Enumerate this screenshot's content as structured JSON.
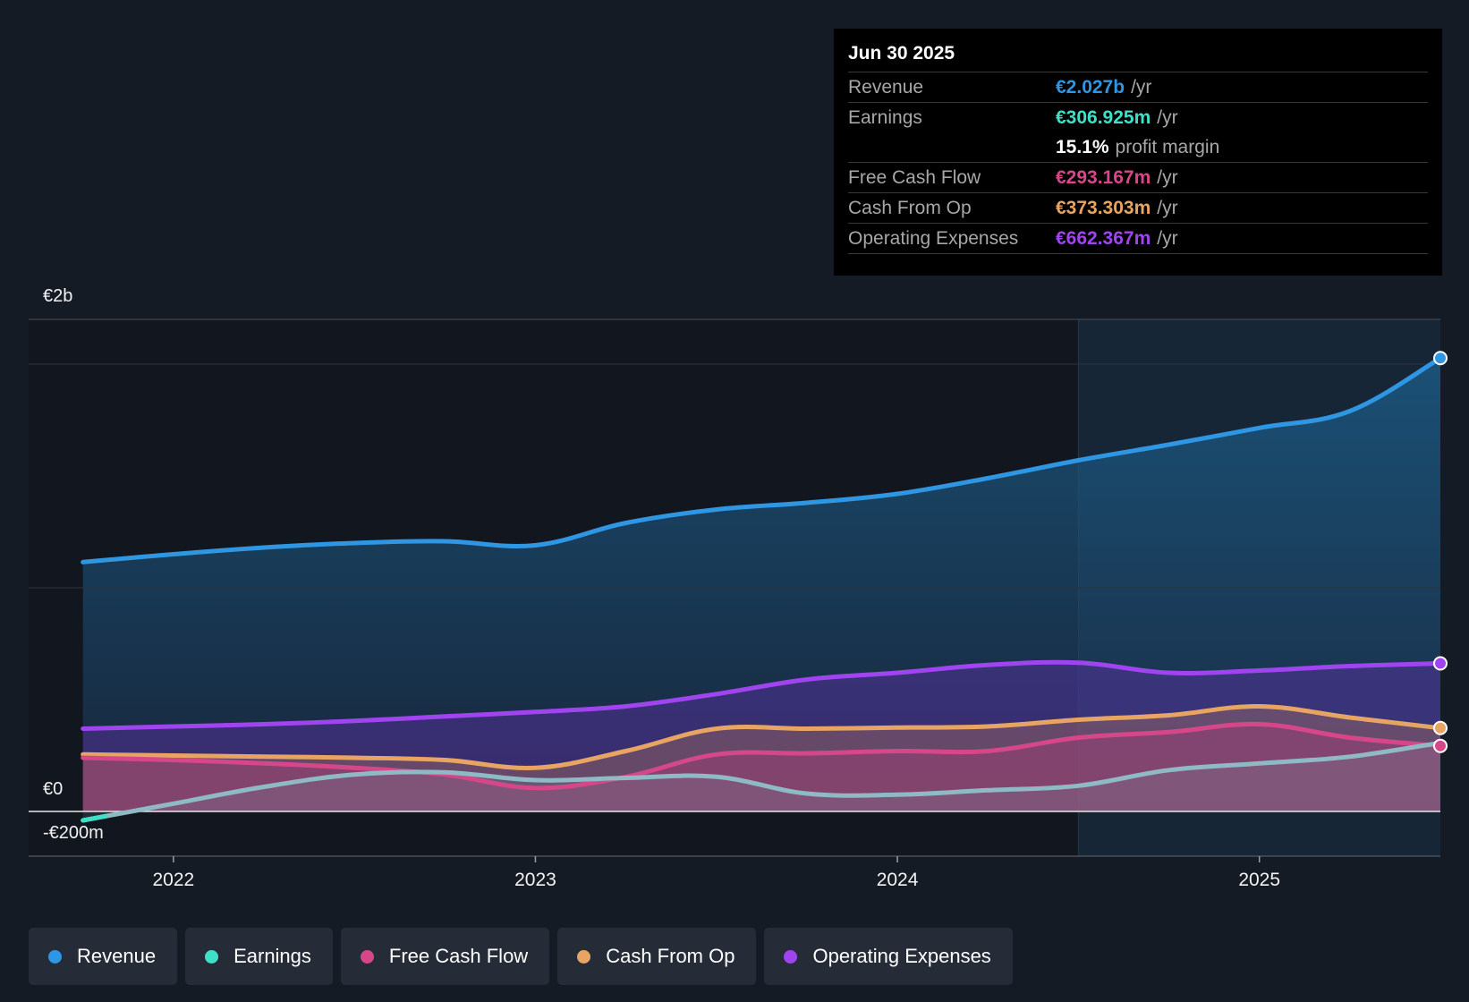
{
  "chart_data": {
    "type": "area",
    "currency_symbol": "€",
    "y_axis_labels": [
      "€2b",
      "€0",
      "-€200m"
    ],
    "ylim_millions": [
      -200,
      2200
    ],
    "x_ticks": [
      "2022",
      "2023",
      "2024",
      "2025"
    ],
    "x_tick_years": [
      2022,
      2023,
      2024,
      2025
    ],
    "xlim_years": [
      2021.6,
      2025.5
    ],
    "highlight_start_year": 2024.5,
    "series": [
      {
        "name": "Revenue",
        "color": "#2f96e3",
        "points": [
          [
            2021.75,
            1115
          ],
          [
            2022.0,
            1150
          ],
          [
            2022.25,
            1180
          ],
          [
            2022.5,
            1200
          ],
          [
            2022.75,
            1208
          ],
          [
            2023.0,
            1190
          ],
          [
            2023.25,
            1290
          ],
          [
            2023.5,
            1350
          ],
          [
            2023.75,
            1380
          ],
          [
            2024.0,
            1420
          ],
          [
            2024.25,
            1490
          ],
          [
            2024.5,
            1570
          ],
          [
            2024.75,
            1640
          ],
          [
            2025.0,
            1715
          ],
          [
            2025.25,
            1790
          ],
          [
            2025.5,
            2027
          ]
        ]
      },
      {
        "name": "Operating Expenses",
        "color": "#a044f0",
        "points": [
          [
            2021.75,
            370
          ],
          [
            2022.0,
            380
          ],
          [
            2022.25,
            390
          ],
          [
            2022.5,
            405
          ],
          [
            2022.75,
            425
          ],
          [
            2023.0,
            445
          ],
          [
            2023.25,
            470
          ],
          [
            2023.5,
            525
          ],
          [
            2023.75,
            590
          ],
          [
            2024.0,
            620
          ],
          [
            2024.25,
            655
          ],
          [
            2024.5,
            665
          ],
          [
            2024.75,
            620
          ],
          [
            2025.0,
            630
          ],
          [
            2025.25,
            650
          ],
          [
            2025.5,
            662
          ]
        ]
      },
      {
        "name": "Cash From Op",
        "color": "#e8a463",
        "points": [
          [
            2021.75,
            255
          ],
          [
            2022.0,
            250
          ],
          [
            2022.25,
            245
          ],
          [
            2022.5,
            240
          ],
          [
            2022.75,
            230
          ],
          [
            2023.0,
            195
          ],
          [
            2023.25,
            270
          ],
          [
            2023.5,
            370
          ],
          [
            2023.75,
            370
          ],
          [
            2024.0,
            375
          ],
          [
            2024.25,
            380
          ],
          [
            2024.5,
            410
          ],
          [
            2024.75,
            430
          ],
          [
            2025.0,
            470
          ],
          [
            2025.25,
            420
          ],
          [
            2025.5,
            373
          ]
        ]
      },
      {
        "name": "Free Cash Flow",
        "color": "#d6478a",
        "points": [
          [
            2021.75,
            240
          ],
          [
            2022.0,
            230
          ],
          [
            2022.25,
            215
          ],
          [
            2022.5,
            195
          ],
          [
            2022.75,
            165
          ],
          [
            2023.0,
            105
          ],
          [
            2023.25,
            155
          ],
          [
            2023.5,
            255
          ],
          [
            2023.75,
            260
          ],
          [
            2024.0,
            270
          ],
          [
            2024.25,
            270
          ],
          [
            2024.5,
            330
          ],
          [
            2024.75,
            355
          ],
          [
            2025.0,
            390
          ],
          [
            2025.25,
            330
          ],
          [
            2025.5,
            293
          ]
        ]
      },
      {
        "name": "Earnings",
        "color": "#3fe0c8",
        "points": [
          [
            2021.75,
            -40
          ],
          [
            2022.0,
            35
          ],
          [
            2022.25,
            110
          ],
          [
            2022.5,
            165
          ],
          [
            2022.75,
            175
          ],
          [
            2023.0,
            140
          ],
          [
            2023.25,
            150
          ],
          [
            2023.5,
            155
          ],
          [
            2023.75,
            80
          ],
          [
            2024.0,
            75
          ],
          [
            2024.25,
            95
          ],
          [
            2024.5,
            115
          ],
          [
            2024.75,
            185
          ],
          [
            2025.0,
            215
          ],
          [
            2025.25,
            245
          ],
          [
            2025.5,
            307
          ]
        ]
      }
    ]
  },
  "tooltip": {
    "date": "Jun 30 2025",
    "unit": "/yr",
    "revenue_label": "Revenue",
    "revenue_value": "€2.027b",
    "earnings_label": "Earnings",
    "earnings_value": "€306.925m",
    "profit_margin_value": "15.1%",
    "profit_margin_text": "profit margin",
    "fcf_label": "Free Cash Flow",
    "fcf_value": "€293.167m",
    "cfo_label": "Cash From Op",
    "cfo_value": "€373.303m",
    "opex_label": "Operating Expenses",
    "opex_value": "€662.367m",
    "colors": {
      "revenue": "#2f96e3",
      "earnings": "#3fe0c8",
      "fcf": "#d6478a",
      "cfo": "#e8a463",
      "opex": "#a044f0"
    }
  },
  "legend": [
    {
      "label": "Revenue",
      "color": "#2f96e3"
    },
    {
      "label": "Earnings",
      "color": "#3fe0c8"
    },
    {
      "label": "Free Cash Flow",
      "color": "#d6478a"
    },
    {
      "label": "Cash From Op",
      "color": "#e8a463"
    },
    {
      "label": "Operating Expenses",
      "color": "#a044f0"
    }
  ]
}
